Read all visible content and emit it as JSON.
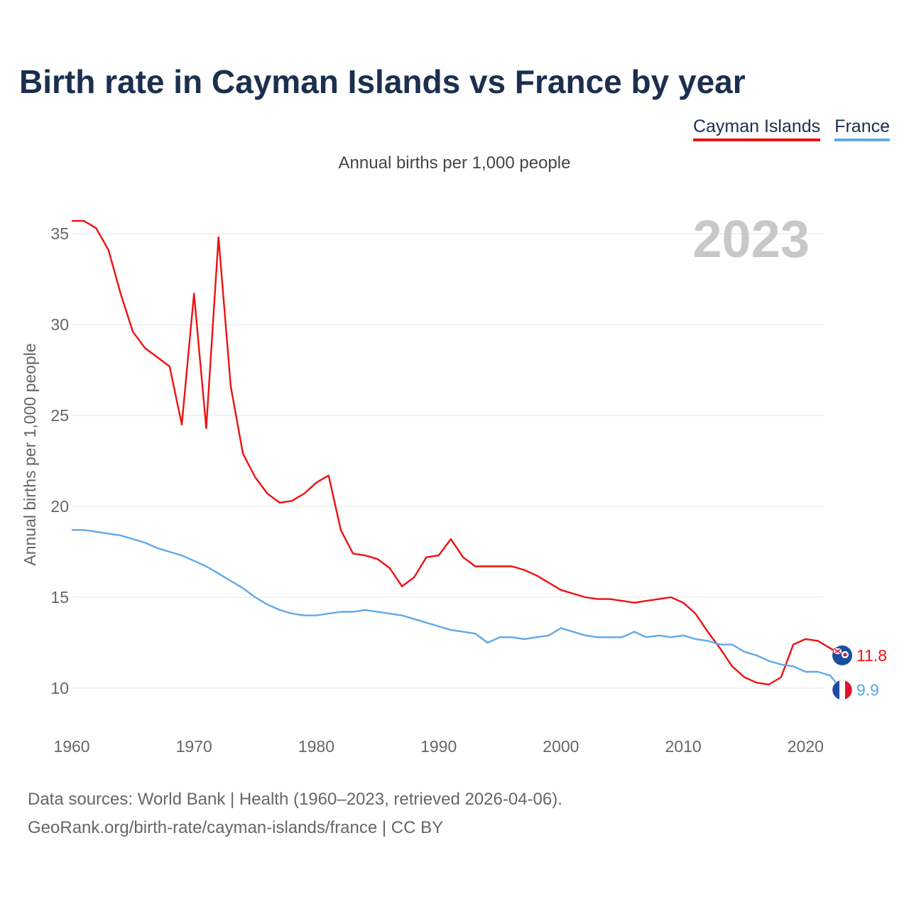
{
  "chart_data": {
    "type": "line",
    "title": "Birth rate in Cayman Islands vs France by year",
    "subtitle": "Annual births per 1,000 people",
    "ylabel": "Annual births per 1,000 people",
    "xlabel": "",
    "year_label": "2023",
    "xlim": [
      1960,
      2023
    ],
    "ylim": [
      8,
      36
    ],
    "y_ticks": [
      10,
      15,
      20,
      25,
      30,
      35
    ],
    "x_ticks": [
      1960,
      1970,
      1980,
      1990,
      2000,
      2010,
      2020
    ],
    "x": [
      1960,
      1961,
      1962,
      1963,
      1964,
      1965,
      1966,
      1967,
      1968,
      1969,
      1970,
      1971,
      1972,
      1973,
      1974,
      1975,
      1976,
      1977,
      1978,
      1979,
      1980,
      1981,
      1982,
      1983,
      1984,
      1985,
      1986,
      1987,
      1988,
      1989,
      1990,
      1991,
      1992,
      1993,
      1994,
      1995,
      1996,
      1997,
      1998,
      1999,
      2000,
      2001,
      2002,
      2003,
      2004,
      2005,
      2006,
      2007,
      2008,
      2009,
      2010,
      2011,
      2012,
      2013,
      2014,
      2015,
      2016,
      2017,
      2018,
      2019,
      2020,
      2021,
      2022,
      2023
    ],
    "series": [
      {
        "name": "Cayman Islands",
        "color": "#ee1111",
        "end_label": "11.8",
        "flag": "cayman-islands-flag-icon",
        "values": [
          35.7,
          35.7,
          35.3,
          34.1,
          31.7,
          29.6,
          28.7,
          28.2,
          27.7,
          24.5,
          31.7,
          24.3,
          34.8,
          26.6,
          22.9,
          21.6,
          20.7,
          20.2,
          20.3,
          20.7,
          21.3,
          21.7,
          18.7,
          17.4,
          17.3,
          17.1,
          16.6,
          15.6,
          16.1,
          17.2,
          17.3,
          18.2,
          17.2,
          16.7,
          16.7,
          16.7,
          16.7,
          16.5,
          16.2,
          15.8,
          15.4,
          15.2,
          15.0,
          14.9,
          14.9,
          14.8,
          14.7,
          14.8,
          14.9,
          15.0,
          14.7,
          14.1,
          13.1,
          12.2,
          11.2,
          10.6,
          10.3,
          10.2,
          10.6,
          12.4,
          12.7,
          12.6,
          12.2,
          11.8
        ]
      },
      {
        "name": "France",
        "color": "#5fa8e8",
        "end_label": "9.9",
        "flag": "france-flag-icon",
        "values": [
          18.7,
          18.7,
          18.6,
          18.5,
          18.4,
          18.2,
          18.0,
          17.7,
          17.5,
          17.3,
          17.0,
          16.7,
          16.3,
          15.9,
          15.5,
          15.0,
          14.6,
          14.3,
          14.1,
          14.0,
          14.0,
          14.1,
          14.2,
          14.2,
          14.3,
          14.2,
          14.1,
          14.0,
          13.8,
          13.6,
          13.4,
          13.2,
          13.1,
          13.0,
          12.5,
          12.8,
          12.8,
          12.7,
          12.8,
          12.9,
          13.3,
          13.1,
          12.9,
          12.8,
          12.8,
          12.8,
          13.1,
          12.8,
          12.9,
          12.8,
          12.9,
          12.7,
          12.6,
          12.4,
          12.4,
          12.0,
          11.8,
          11.5,
          11.3,
          11.2,
          10.9,
          10.9,
          10.7,
          9.9
        ]
      }
    ],
    "source_line1": "Data sources: World Bank | Health (1960–2023, retrieved 2026-04-06).",
    "source_line2": "GeoRank.org/birth-rate/cayman-islands/france | CC BY"
  }
}
